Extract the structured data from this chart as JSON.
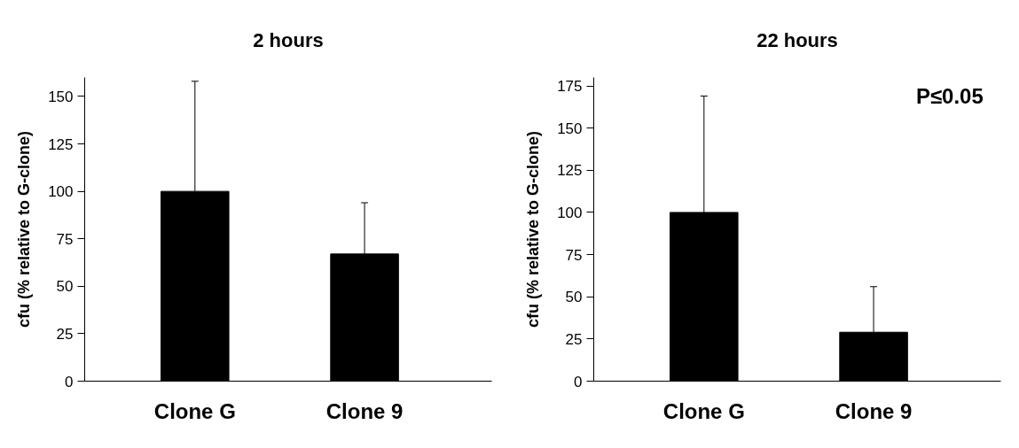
{
  "chart_data": [
    {
      "type": "bar",
      "title": "2 hours",
      "ylabel": "cfu (% relative to G-clone)",
      "categories": [
        "Clone G",
        "Clone 9"
      ],
      "values": [
        100,
        67
      ],
      "color": "#000000",
      "errors": [
        [
          100,
          158
        ],
        [
          67,
          94
        ]
      ],
      "ylim": [
        0,
        160
      ],
      "yticks": [
        0,
        25,
        50,
        75,
        100,
        125,
        150
      ],
      "grid": false
    },
    {
      "type": "bar",
      "title": "22 hours",
      "ylabel": "cfu (% relative to G-clone)",
      "categories": [
        "Clone G",
        "Clone 9"
      ],
      "values": [
        100,
        29
      ],
      "color": "#000000",
      "errors": [
        [
          100,
          169
        ],
        [
          29,
          56
        ]
      ],
      "ylim": [
        0,
        180
      ],
      "yticks": [
        0,
        25,
        50,
        75,
        100,
        125,
        150,
        175
      ],
      "grid": false,
      "annotations": [
        "P≤0.05"
      ]
    }
  ]
}
